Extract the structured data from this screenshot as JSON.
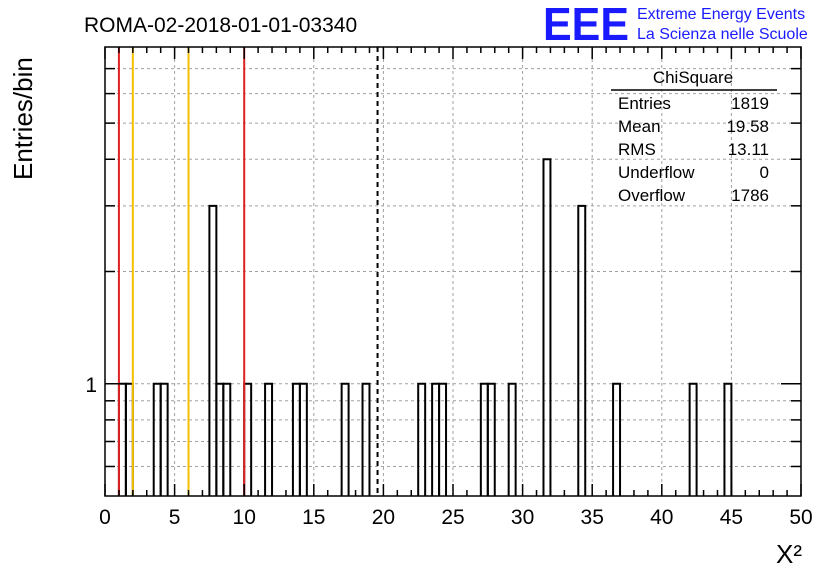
{
  "header": {
    "title": "ROMA-02-2018-01-01-03340",
    "logo": "EEE",
    "logo_line1": "Extreme Energy Events",
    "logo_line2": "La Scienza nelle Scuole"
  },
  "stats_box": {
    "name": "ChiSquare",
    "rows": [
      {
        "label": "Entries",
        "value": "1819"
      },
      {
        "label": "Mean",
        "value": "19.58"
      },
      {
        "label": "RMS",
        "value": "13.11"
      },
      {
        "label": "Underflow",
        "value": "0"
      },
      {
        "label": "Overflow",
        "value": "1786"
      }
    ]
  },
  "colors": {
    "red_line": "#e02020",
    "yellow_line": "#f5c000",
    "histogram": "#000000",
    "grid": "#a0a0a0",
    "logo": "#1a1aff"
  },
  "chart_data": {
    "type": "bar",
    "title": "ROMA-02-2018-01-01-03340",
    "xlabel": "X²",
    "ylabel": "Entries/bin",
    "xlim": [
      0,
      50
    ],
    "ylim": [
      0.5,
      8
    ],
    "y_scale": "log",
    "grid": true,
    "bin_width": 0.5,
    "x_ticks": [
      0,
      5,
      10,
      15,
      20,
      25,
      30,
      35,
      40,
      45,
      50
    ],
    "x_tick_labels": [
      "0",
      "5",
      "10",
      "15",
      "20",
      "25",
      "30",
      "35",
      "40",
      "45",
      "50"
    ],
    "y_tick_labels": [
      {
        "value": 1,
        "label": "1"
      }
    ],
    "bins": [
      {
        "x": 1.0,
        "count": 1
      },
      {
        "x": 1.5,
        "count": 1
      },
      {
        "x": 3.5,
        "count": 1
      },
      {
        "x": 4.0,
        "count": 1
      },
      {
        "x": 7.5,
        "count": 3
      },
      {
        "x": 8.0,
        "count": 1
      },
      {
        "x": 8.5,
        "count": 1
      },
      {
        "x": 10.0,
        "count": 1
      },
      {
        "x": 11.5,
        "count": 1
      },
      {
        "x": 13.5,
        "count": 1
      },
      {
        "x": 14.0,
        "count": 1
      },
      {
        "x": 17.0,
        "count": 1
      },
      {
        "x": 18.5,
        "count": 1
      },
      {
        "x": 22.5,
        "count": 1
      },
      {
        "x": 23.5,
        "count": 1
      },
      {
        "x": 24.0,
        "count": 1
      },
      {
        "x": 27.0,
        "count": 1
      },
      {
        "x": 27.5,
        "count": 1
      },
      {
        "x": 29.0,
        "count": 1
      },
      {
        "x": 31.5,
        "count": 4
      },
      {
        "x": 34.0,
        "count": 3
      },
      {
        "x": 36.5,
        "count": 1
      },
      {
        "x": 42.0,
        "count": 1
      },
      {
        "x": 44.5,
        "count": 1
      }
    ],
    "vertical_lines": [
      {
        "x": 1.0,
        "color": "red",
        "style": "solid"
      },
      {
        "x": 2.0,
        "color": "yellow",
        "style": "solid"
      },
      {
        "x": 6.0,
        "color": "yellow",
        "style": "solid"
      },
      {
        "x": 10.0,
        "color": "red",
        "style": "solid"
      },
      {
        "x": 19.58,
        "color": "black",
        "style": "dashed"
      }
    ]
  }
}
